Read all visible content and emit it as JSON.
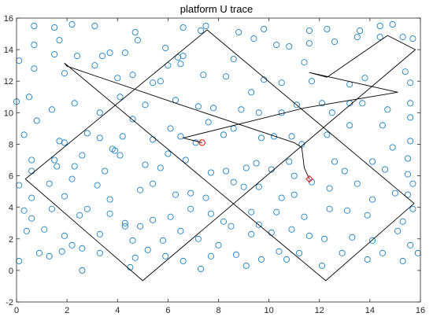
{
  "chart_data": {
    "type": "scatter",
    "title": "platform U trace",
    "xlabel": "",
    "ylabel": "",
    "xlim": [
      0,
      16
    ],
    "ylim": [
      -2,
      16
    ],
    "xticks": [
      "0",
      "2",
      "4",
      "6",
      "8",
      "10",
      "12",
      "14",
      "16"
    ],
    "yticks": [
      "-2",
      "0",
      "2",
      "4",
      "6",
      "8",
      "10",
      "12",
      "14",
      "16"
    ],
    "grid": false,
    "legend": "none",
    "colors": {
      "points": "#0072BD",
      "trace": "#000000",
      "markers": "#FF0000",
      "axes": "#262626"
    },
    "series": [
      {
        "type": "scatter",
        "marker": "circle",
        "color": "#0072BD",
        "points": [
          [
            0.7,
            15.5
          ],
          [
            1.5,
            15.4
          ],
          [
            2.2,
            15.6
          ],
          [
            3.1,
            15.5
          ],
          [
            4.7,
            15.1
          ],
          [
            6.6,
            15.4
          ],
          [
            7.5,
            15.5
          ],
          [
            8.8,
            15.1
          ],
          [
            9.4,
            14.7
          ],
          [
            9.8,
            15.3
          ],
          [
            11.6,
            15.2
          ],
          [
            12.3,
            15.3
          ],
          [
            13.5,
            14.8
          ],
          [
            14.4,
            15.5
          ],
          [
            14.9,
            15.6
          ],
          [
            15.3,
            14.8
          ],
          [
            0.7,
            14.3
          ],
          [
            1.7,
            14.6
          ],
          [
            2.4,
            13.6
          ],
          [
            3.7,
            13.8
          ],
          [
            3.4,
            13.6
          ],
          [
            4.3,
            13.8
          ],
          [
            4.8,
            14.6
          ],
          [
            5.9,
            14.1
          ],
          [
            6.4,
            13.5
          ],
          [
            6.6,
            13.6
          ],
          [
            7.3,
            15.2
          ],
          [
            10.3,
            14.3
          ],
          [
            10.8,
            14.2
          ],
          [
            11.6,
            14.4
          ],
          [
            12.6,
            14.5
          ],
          [
            14.4,
            14.8
          ],
          [
            13.6,
            15.2
          ],
          [
            15.7,
            14.7
          ],
          [
            0.1,
            13.3
          ],
          [
            0.7,
            12.8
          ],
          [
            1.5,
            13.7
          ],
          [
            1.9,
            12.5
          ],
          [
            3.1,
            13.0
          ],
          [
            4.0,
            12.2
          ],
          [
            4.6,
            12.4
          ],
          [
            5.7,
            12.0
          ],
          [
            6.0,
            13.0
          ],
          [
            6.5,
            13.1
          ],
          [
            7.4,
            12.4
          ],
          [
            8.3,
            12.3
          ],
          [
            8.6,
            13.4
          ],
          [
            9.8,
            12.1
          ],
          [
            10.5,
            11.9
          ],
          [
            11.4,
            13.2
          ],
          [
            11.7,
            12.0
          ],
          [
            13.2,
            11.8
          ],
          [
            13.8,
            12.2
          ],
          [
            15.4,
            12.6
          ],
          [
            15.6,
            11.9
          ],
          [
            0.0,
            10.7
          ],
          [
            0.5,
            11.0
          ],
          [
            1.4,
            10.2
          ],
          [
            2.3,
            10.6
          ],
          [
            3.3,
            10.0
          ],
          [
            4.1,
            11.0
          ],
          [
            4.6,
            9.6
          ],
          [
            5.1,
            10.5
          ],
          [
            5.4,
            11.9
          ],
          [
            6.3,
            10.8
          ],
          [
            7.2,
            10.4
          ],
          [
            7.8,
            10.3
          ],
          [
            8.9,
            10.2
          ],
          [
            9.3,
            11.3
          ],
          [
            9.6,
            10.0
          ],
          [
            10.5,
            10.0
          ],
          [
            11.1,
            10.5
          ],
          [
            12.1,
            10.6
          ],
          [
            12.5,
            10.0
          ],
          [
            13.2,
            10.6
          ],
          [
            13.7,
            10.6
          ],
          [
            14.7,
            10.2
          ],
          [
            15.6,
            10.6
          ],
          [
            15.6,
            9.7
          ],
          [
            0.3,
            8.6
          ],
          [
            0.8,
            9.5
          ],
          [
            1.7,
            8.2
          ],
          [
            1.9,
            8.1
          ],
          [
            2.8,
            8.7
          ],
          [
            3.3,
            8.4
          ],
          [
            3.8,
            7.7
          ],
          [
            4.2,
            8.5
          ],
          [
            5.4,
            8.3
          ],
          [
            6.1,
            9.0
          ],
          [
            6.5,
            8.5
          ],
          [
            7.1,
            8.1
          ],
          [
            7.6,
            9.4
          ],
          [
            8.2,
            8.6
          ],
          [
            8.6,
            9.0
          ],
          [
            9.7,
            8.4
          ],
          [
            10.2,
            8.5
          ],
          [
            10.9,
            8.5
          ],
          [
            11.3,
            8.0
          ],
          [
            12.3,
            8.6
          ],
          [
            13.2,
            9.2
          ],
          [
            14.5,
            9.2
          ],
          [
            14.9,
            7.8
          ],
          [
            15.6,
            8.2
          ],
          [
            0.6,
            7.0
          ],
          [
            0.6,
            6.3
          ],
          [
            1.5,
            7.0
          ],
          [
            1.6,
            6.6
          ],
          [
            2.3,
            6.6
          ],
          [
            2.6,
            7.3
          ],
          [
            3.5,
            6.3
          ],
          [
            3.9,
            7.6
          ],
          [
            4.1,
            7.3
          ],
          [
            5.1,
            6.7
          ],
          [
            5.7,
            6.5
          ],
          [
            6.0,
            7.4
          ],
          [
            6.7,
            7.0
          ],
          [
            7.7,
            6.2
          ],
          [
            8.3,
            6.3
          ],
          [
            9.1,
            6.5
          ],
          [
            9.5,
            6.8
          ],
          [
            10.1,
            6.4
          ],
          [
            10.8,
            6.9
          ],
          [
            11.0,
            6.0
          ],
          [
            12.6,
            6.9
          ],
          [
            13.0,
            6.3
          ],
          [
            14.1,
            6.9
          ],
          [
            14.6,
            6.4
          ],
          [
            15.5,
            7.1
          ],
          [
            15.5,
            6.1
          ],
          [
            0.1,
            5.4
          ],
          [
            0.6,
            4.6
          ],
          [
            1.3,
            5.5
          ],
          [
            1.9,
            4.7
          ],
          [
            2.2,
            5.8
          ],
          [
            3.2,
            5.4
          ],
          [
            3.7,
            4.5
          ],
          [
            4.9,
            5.1
          ],
          [
            5.4,
            5.5
          ],
          [
            6.3,
            4.8
          ],
          [
            6.9,
            4.9
          ],
          [
            7.5,
            4.6
          ],
          [
            8.6,
            5.6
          ],
          [
            9.0,
            5.3
          ],
          [
            9.6,
            5.3
          ],
          [
            10.5,
            4.6
          ],
          [
            11.0,
            4.8
          ],
          [
            11.7,
            5.6
          ],
          [
            12.4,
            5.2
          ],
          [
            13.5,
            5.5
          ],
          [
            14.1,
            4.5
          ],
          [
            15.0,
            4.9
          ],
          [
            15.5,
            4.8
          ],
          [
            15.7,
            5.5
          ],
          [
            0.3,
            3.8
          ],
          [
            0.6,
            3.3
          ],
          [
            1.4,
            3.9
          ],
          [
            2.5,
            3.5
          ],
          [
            2.8,
            3.9
          ],
          [
            3.7,
            3.6
          ],
          [
            4.3,
            3.0
          ],
          [
            4.9,
            2.8
          ],
          [
            5.4,
            3.2
          ],
          [
            6.1,
            3.4
          ],
          [
            6.9,
            3.9
          ],
          [
            7.7,
            3.6
          ],
          [
            8.2,
            3.1
          ],
          [
            9.3,
            3.7
          ],
          [
            9.6,
            2.9
          ],
          [
            10.3,
            3.7
          ],
          [
            11.4,
            3.4
          ],
          [
            12.4,
            3.9
          ],
          [
            13.1,
            3.8
          ],
          [
            13.9,
            3.5
          ],
          [
            15.3,
            3.1
          ],
          [
            15.7,
            3.9
          ],
          [
            0.4,
            2.5
          ],
          [
            1.1,
            2.6
          ],
          [
            1.9,
            2.2
          ],
          [
            2.2,
            1.6
          ],
          [
            3.3,
            2.3
          ],
          [
            4.3,
            2.8
          ],
          [
            4.6,
            1.9
          ],
          [
            5.8,
            1.9
          ],
          [
            6.5,
            2.5
          ],
          [
            7.2,
            2.0
          ],
          [
            8.0,
            1.6
          ],
          [
            8.5,
            2.8
          ],
          [
            9.3,
            2.3
          ],
          [
            10.1,
            2.4
          ],
          [
            10.9,
            2.6
          ],
          [
            11.6,
            2.2
          ],
          [
            12.2,
            2.0
          ],
          [
            13.3,
            2.1
          ],
          [
            14.1,
            1.9
          ],
          [
            15.1,
            2.5
          ],
          [
            15.6,
            1.6
          ],
          [
            0.1,
            0.6
          ],
          [
            0.9,
            1.1
          ],
          [
            1.3,
            0.9
          ],
          [
            1.8,
            1.2
          ],
          [
            2.6,
            1.4
          ],
          [
            3.3,
            1.1
          ],
          [
            4.5,
            0.2
          ],
          [
            5.2,
            1.3
          ],
          [
            5.9,
            0.9
          ],
          [
            6.6,
            0.6
          ],
          [
            7.3,
            0.1
          ],
          [
            7.7,
            0.9
          ],
          [
            8.7,
            1.0
          ],
          [
            9.1,
            0.3
          ],
          [
            9.7,
            0.7
          ],
          [
            10.4,
            1.2
          ],
          [
            10.7,
            0.7
          ],
          [
            11.2,
            1.1
          ],
          [
            12.1,
            0.3
          ],
          [
            12.9,
            1.1
          ],
          [
            13.9,
            0.7
          ],
          [
            14.5,
            1.1
          ],
          [
            15.3,
            0.6
          ],
          [
            15.9,
            1.1
          ],
          [
            2.6,
            0.0
          ],
          [
            4.7,
            0.8
          ]
        ]
      },
      {
        "type": "line",
        "color": "#000000",
        "points": [
          [
            7.35,
            8.1
          ],
          [
            6.6,
            8.4
          ],
          [
            11.4,
            10.3
          ],
          [
            15.1,
            11.3
          ],
          [
            11.6,
            12.55
          ],
          [
            12.3,
            12.25
          ],
          [
            14.7,
            14.9
          ],
          [
            15.8,
            14.0
          ],
          [
            5.0,
            -0.65
          ],
          [
            0.35,
            5.8
          ],
          [
            7.55,
            15.25
          ],
          [
            15.75,
            4.25
          ],
          [
            12.25,
            -0.65
          ],
          [
            1.9,
            13.15
          ],
          [
            2.0,
            12.95
          ],
          [
            6.5,
            10.5
          ],
          [
            11.0,
            8.1
          ],
          [
            11.3,
            7.8
          ],
          [
            11.4,
            6.5
          ],
          [
            11.6,
            5.8
          ]
        ]
      }
    ],
    "markers": [
      {
        "shape": "circle",
        "x": 7.35,
        "y": 8.1,
        "color": "#FF0000"
      },
      {
        "shape": "diamond",
        "x": 11.6,
        "y": 5.8,
        "color": "#FF0000"
      }
    ]
  }
}
